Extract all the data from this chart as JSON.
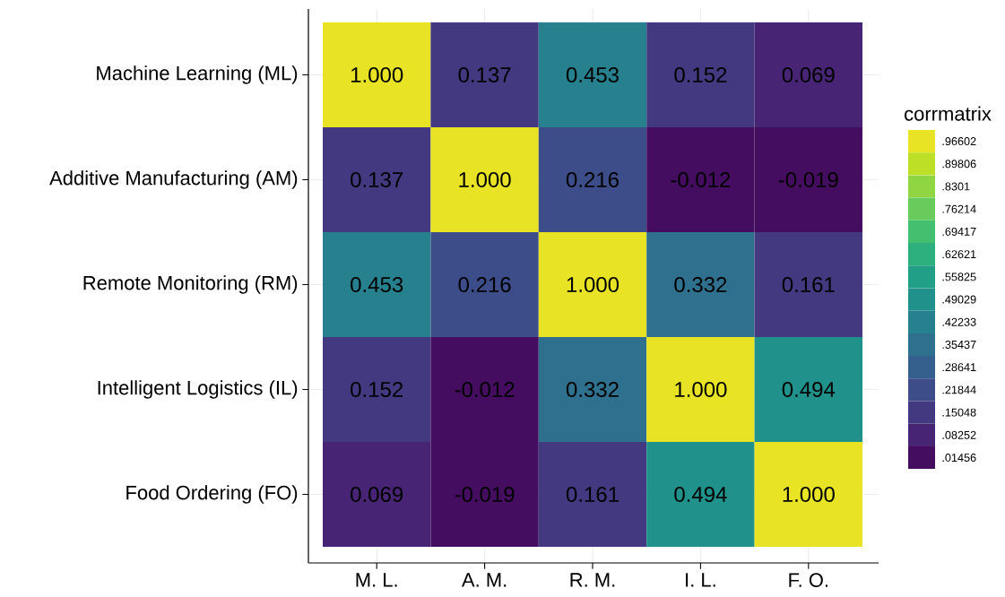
{
  "chart_data": {
    "type": "heatmap",
    "categories": [
      "M. L.",
      "A. M.",
      "R. M.",
      "I. L.",
      "F. O."
    ],
    "y_categories": [
      "Machine Learning (ML)",
      "Additive Manufacturing (AM)",
      "Remote Monitoring (RM)",
      "Intelligent Logistics (IL)",
      "Food Ordering (FO)"
    ],
    "cells": [
      [
        1.0,
        0.137,
        0.453,
        0.152,
        0.069
      ],
      [
        0.137,
        1.0,
        0.216,
        -0.012,
        -0.019
      ],
      [
        0.453,
        0.216,
        1.0,
        0.332,
        0.161
      ],
      [
        0.152,
        -0.012,
        0.332,
        1.0,
        0.494
      ],
      [
        0.069,
        -0.019,
        0.161,
        0.494,
        1.0
      ]
    ],
    "cell_labels": [
      [
        "1.000",
        "0.137",
        "0.453",
        "0.152",
        "0.069"
      ],
      [
        "0.137",
        "1.000",
        "0.216",
        "-0.012",
        "-0.019"
      ],
      [
        "0.453",
        "0.216",
        "1.000",
        "0.332",
        "0.161"
      ],
      [
        "0.152",
        "-0.012",
        "0.332",
        "1.000",
        "0.494"
      ],
      [
        "0.069",
        "-0.019",
        "0.161",
        "0.494",
        "1.000"
      ]
    ],
    "clabel": "corrmatrix",
    "clim": [
      -0.019,
      1.0
    ],
    "cticks": [
      {
        "value": 0.96602,
        "label": ".96602"
      },
      {
        "value": 0.89806,
        "label": ".89806"
      },
      {
        "value": 0.8301,
        "label": ".8301"
      },
      {
        "value": 0.76214,
        "label": ".76214"
      },
      {
        "value": 0.69417,
        "label": ".69417"
      },
      {
        "value": 0.62621,
        "label": ".62621"
      },
      {
        "value": 0.55825,
        "label": ".55825"
      },
      {
        "value": 0.49029,
        "label": ".49029"
      },
      {
        "value": 0.42233,
        "label": ".42233"
      },
      {
        "value": 0.35437,
        "label": ".35437"
      },
      {
        "value": 0.28641,
        "label": ".28641"
      },
      {
        "value": 0.21844,
        "label": ".21844"
      },
      {
        "value": 0.15048,
        "label": ".15048"
      },
      {
        "value": 0.08252,
        "label": ".08252"
      },
      {
        "value": 0.01456,
        "label": ".01456"
      }
    ],
    "grid": true
  }
}
